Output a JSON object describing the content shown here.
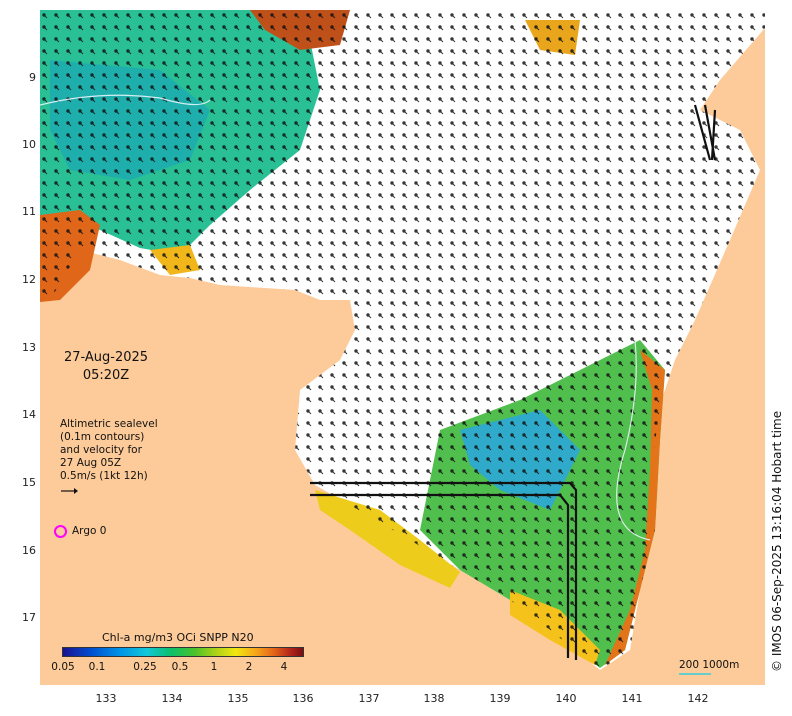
{
  "date_label": "27-Aug-2025",
  "time_label": "05:20Z",
  "altimetry": {
    "line1": "Altimetric sealevel",
    "line2": "(0.1m contours)",
    "line3": "and velocity for",
    "line4": "27 Aug 05Z",
    "line5": "0.5m/s (1kt 12h)"
  },
  "argo_label": "Argo 0",
  "colorbar": {
    "title": "Chl-a mg/m3 OCi SNPP N20",
    "ticks": [
      "0.05",
      "0.1",
      "0.25",
      "0.5",
      "1",
      "2",
      "4"
    ]
  },
  "scale_label": "200  1000m",
  "side_text": "© IMOS 06-Sep-2025 13:16:04 Hobart time",
  "lat_ticks": [
    "9",
    "10",
    "11",
    "12",
    "13",
    "14",
    "15",
    "16",
    "17"
  ],
  "lon_ticks": [
    "133",
    "134",
    "135",
    "136",
    "137",
    "138",
    "139",
    "140",
    "141",
    "142"
  ],
  "colors": {
    "land": "#fdcb99",
    "sea": "#ffffff",
    "argo": "#ff00ff"
  }
}
